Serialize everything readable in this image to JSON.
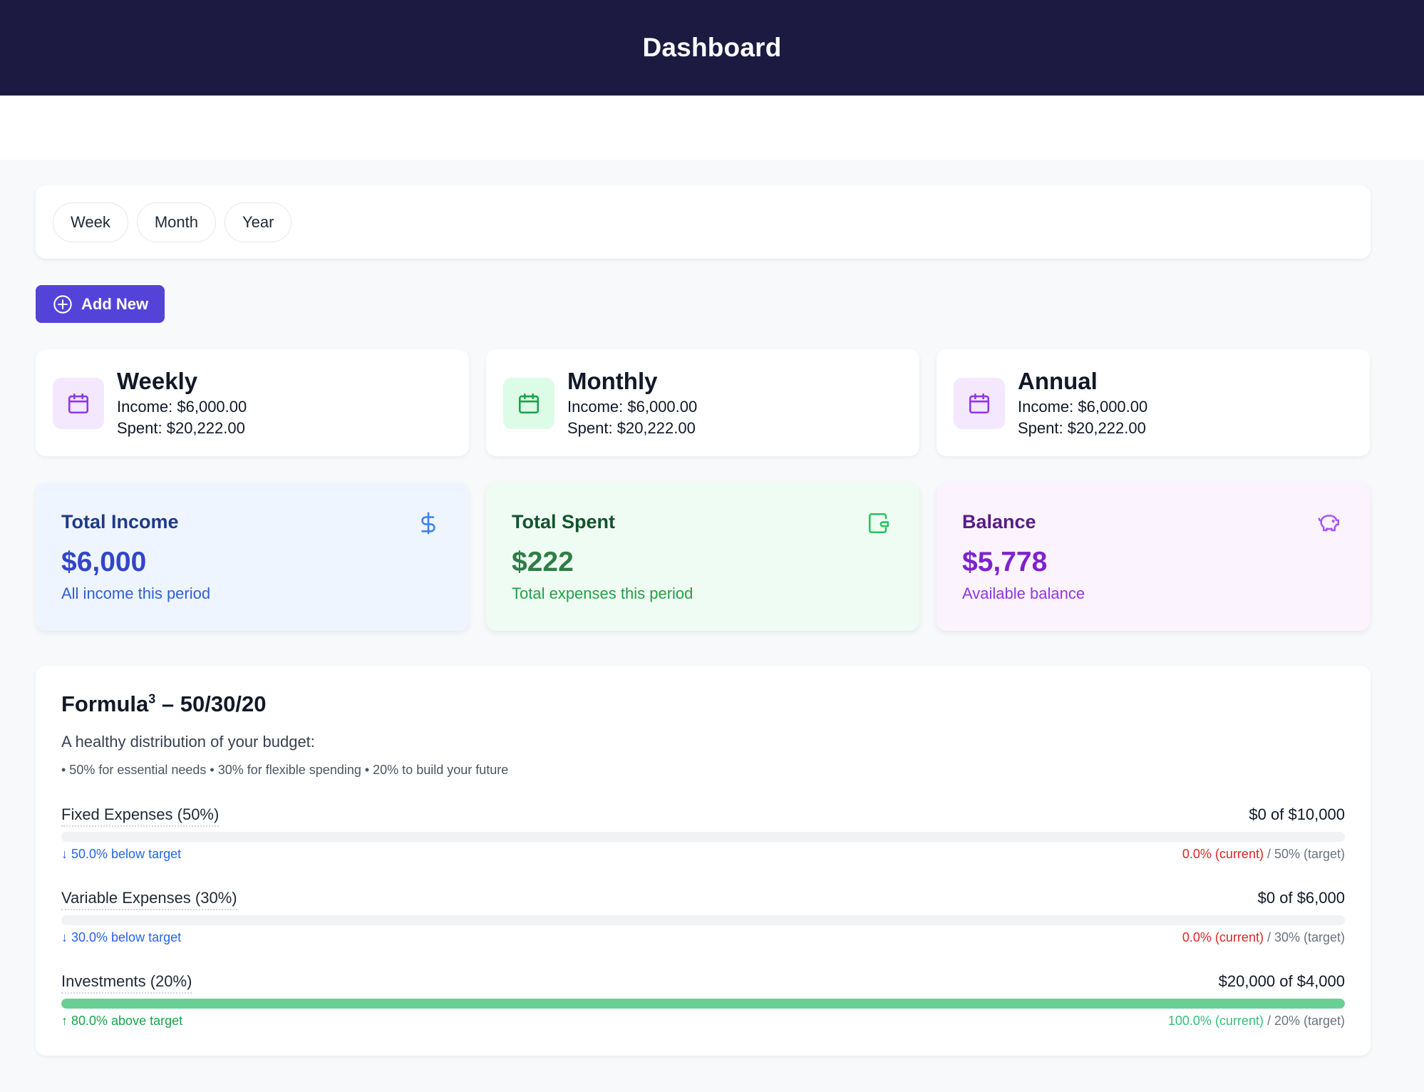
{
  "header": {
    "title": "Dashboard"
  },
  "filters": [
    "Week",
    "Month",
    "Year"
  ],
  "add_button": {
    "label": "Add New"
  },
  "periods": [
    {
      "title": "Weekly",
      "income": "Income: $6,000.00",
      "spent": "Spent: $20,222.00",
      "icon": "calendar-icon",
      "color": "#9333ea",
      "bg": "#f3e8ff"
    },
    {
      "title": "Monthly",
      "income": "Income: $6,000.00",
      "spent": "Spent: $20,222.00",
      "icon": "calendar-icon",
      "color": "#16a34a",
      "bg": "#dcfce7"
    },
    {
      "title": "Annual",
      "income": "Income: $6,000.00",
      "spent": "Spent: $20,222.00",
      "icon": "calendar-icon",
      "color": "#9333ea",
      "bg": "#f3e8ff"
    }
  ],
  "summary": [
    {
      "title": "Total Income",
      "value": "$6,000",
      "subtitle": "All income this period",
      "icon": "dollar-icon",
      "bg": "#eff5fe",
      "title_color": "#1e3a8a",
      "value_color": "#3346c7",
      "sub_color": "#2f5fd6",
      "icon_color": "#3b82f6"
    },
    {
      "title": "Total Spent",
      "value": "$222",
      "subtitle": "Total expenses this period",
      "icon": "wallet-icon",
      "bg": "#effcf3",
      "title_color": "#14532d",
      "value_color": "#2f7d45",
      "sub_color": "#22a046",
      "icon_color": "#22c55e"
    },
    {
      "title": "Balance",
      "value": "$5,778",
      "subtitle": "Available balance",
      "icon": "piggy-bank-icon",
      "bg": "#fbf4fe",
      "title_color": "#581c87",
      "value_color": "#7e22ce",
      "sub_color": "#9333ea",
      "icon_color": "#a855f7"
    }
  ],
  "formula": {
    "title": "Formula",
    "title_sup": "3",
    "title_rest": " – 50/30/20",
    "description": "A healthy distribution of your budget:",
    "bullets": "• 50% for essential needs • 30% for flexible spending • 20% to build your future",
    "rows": [
      {
        "label": "Fixed Expenses (50%)",
        "amount": "$0 of $10,000",
        "fill_fraction": 0,
        "fill_color": "#e5e7eb",
        "status": "↓ 50.0% below target",
        "status_color": "#2563eb",
        "current": "0.0% (current)",
        "current_color": "#dc2626",
        "target": " / 50% (target)"
      },
      {
        "label": "Variable Expenses (30%)",
        "amount": "$0 of $6,000",
        "fill_fraction": 0,
        "fill_color": "#e5e7eb",
        "status": "↓ 30.0% below target",
        "status_color": "#2563eb",
        "current": "0.0% (current)",
        "current_color": "#dc2626",
        "target": " / 30% (target)"
      },
      {
        "label": "Investments (20%)",
        "amount": "$20,000 of $4,000",
        "fill_fraction": 1,
        "fill_color": "#6acf94",
        "status": "↑ 80.0% above target",
        "status_color": "#16a34a",
        "current": "100.0% (current)",
        "current_color": "#34c07a",
        "target": " / 20% (target)"
      }
    ]
  }
}
